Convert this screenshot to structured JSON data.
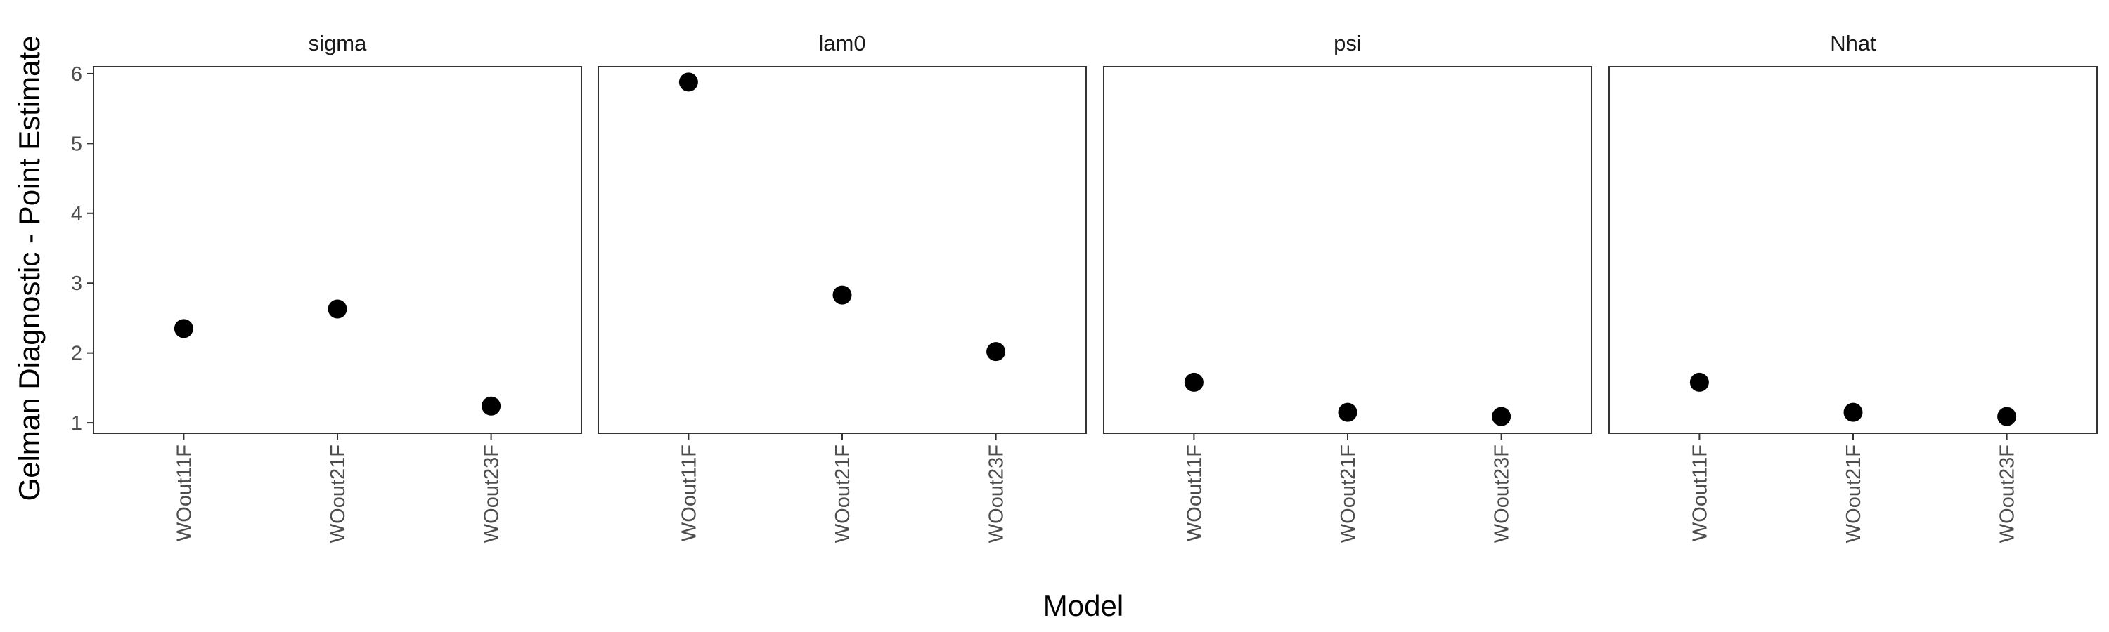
{
  "chart_data": {
    "type": "scatter",
    "xlabel": "Model",
    "ylabel": "Gelman Diagnostic - Point Estimate",
    "categories": [
      "WOout11F",
      "WOout21F",
      "WOout23F"
    ],
    "ylim": [
      0.85,
      6.1
    ],
    "yticks": [
      1,
      2,
      3,
      4,
      5,
      6
    ],
    "grid": false,
    "legend": "none",
    "point_color": "#000000",
    "panels": [
      {
        "name": "sigma",
        "values": [
          2.35,
          2.63,
          1.24
        ]
      },
      {
        "name": "lam0",
        "values": [
          5.88,
          2.83,
          2.02
        ]
      },
      {
        "name": "psi",
        "values": [
          1.58,
          1.15,
          1.09
        ]
      },
      {
        "name": "Nhat",
        "values": [
          1.58,
          1.15,
          1.09
        ]
      }
    ]
  }
}
